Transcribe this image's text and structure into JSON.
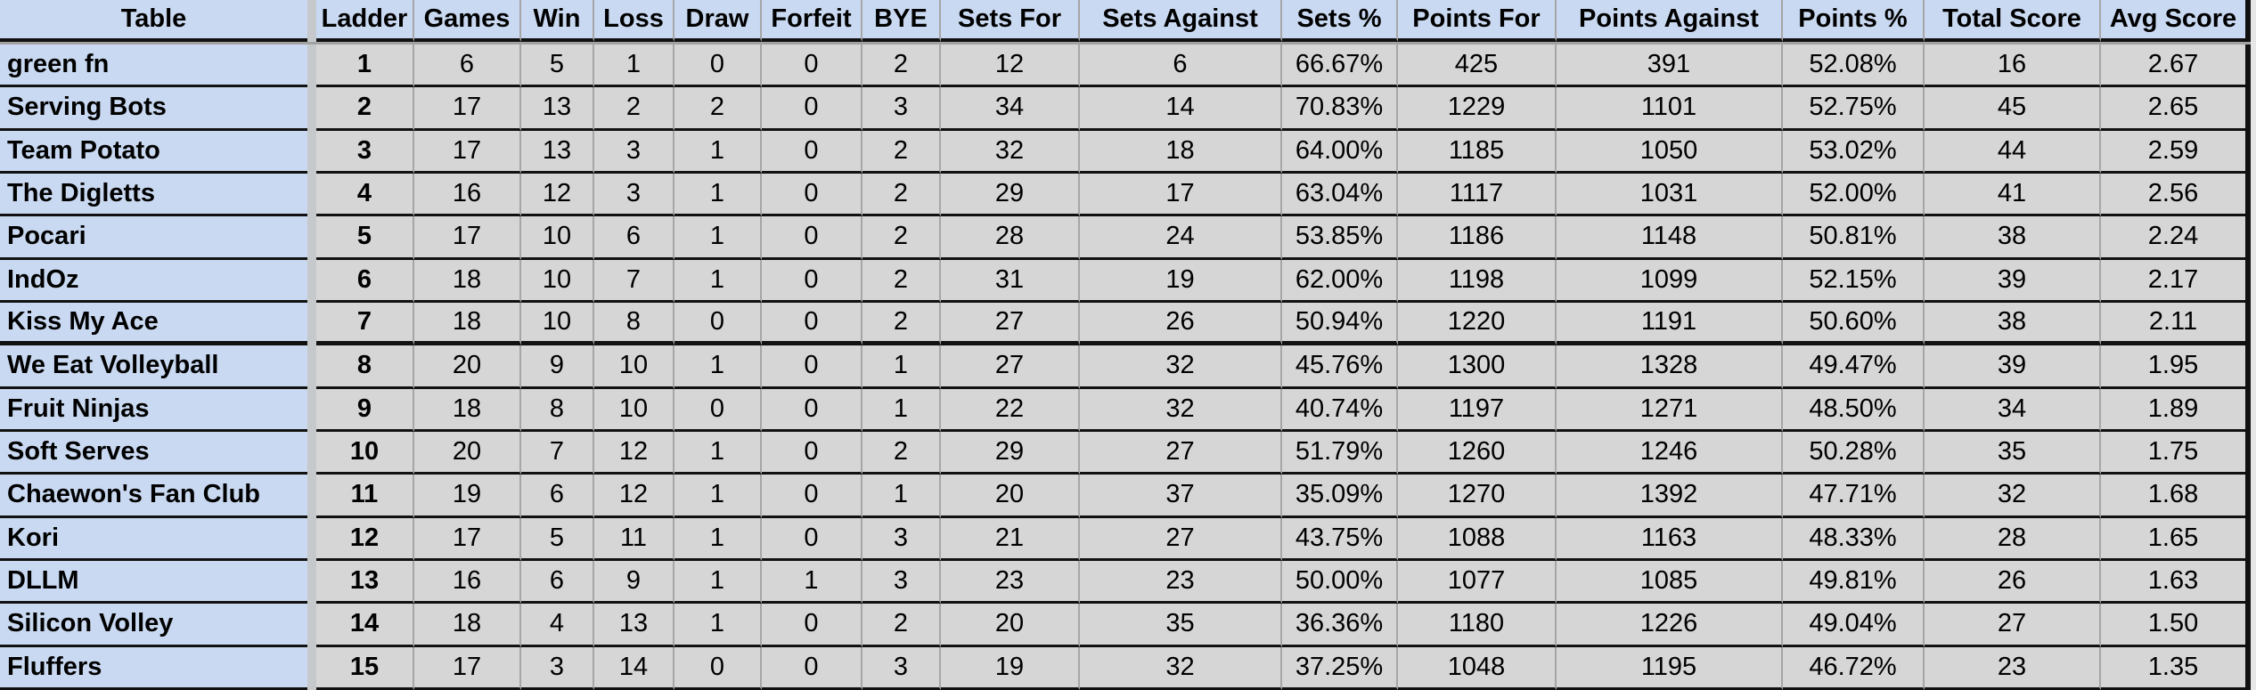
{
  "table": {
    "columns": [
      "Table",
      "Ladder",
      "Games",
      "Win",
      "Loss",
      "Draw",
      "Forfeit",
      "BYE",
      "Sets For",
      "Sets Against",
      "Sets %",
      "Points For",
      "Points Against",
      "Points %",
      "Total Score",
      "Avg Score"
    ],
    "rows": [
      {
        "team": "green fn",
        "values": [
          "1",
          "6",
          "5",
          "1",
          "0",
          "0",
          "2",
          "12",
          "6",
          "66.67%",
          "425",
          "391",
          "52.08%",
          "16",
          "2.67"
        ]
      },
      {
        "team": "Serving Bots",
        "values": [
          "2",
          "17",
          "13",
          "2",
          "2",
          "0",
          "3",
          "34",
          "14",
          "70.83%",
          "1229",
          "1101",
          "52.75%",
          "45",
          "2.65"
        ]
      },
      {
        "team": "Team Potato",
        "values": [
          "3",
          "17",
          "13",
          "3",
          "1",
          "0",
          "2",
          "32",
          "18",
          "64.00%",
          "1185",
          "1050",
          "53.02%",
          "44",
          "2.59"
        ]
      },
      {
        "team": "The Digletts",
        "values": [
          "4",
          "16",
          "12",
          "3",
          "1",
          "0",
          "2",
          "29",
          "17",
          "63.04%",
          "1117",
          "1031",
          "52.00%",
          "41",
          "2.56"
        ]
      },
      {
        "team": "Pocari",
        "values": [
          "5",
          "17",
          "10",
          "6",
          "1",
          "0",
          "2",
          "28",
          "24",
          "53.85%",
          "1186",
          "1148",
          "50.81%",
          "38",
          "2.24"
        ]
      },
      {
        "team": "IndOz",
        "values": [
          "6",
          "18",
          "10",
          "7",
          "1",
          "0",
          "2",
          "31",
          "19",
          "62.00%",
          "1198",
          "1099",
          "52.15%",
          "39",
          "2.17"
        ]
      },
      {
        "team": "Kiss My Ace",
        "values": [
          "7",
          "18",
          "10",
          "8",
          "0",
          "0",
          "2",
          "27",
          "26",
          "50.94%",
          "1220",
          "1191",
          "50.60%",
          "38",
          "2.11"
        ]
      },
      {
        "team": "We Eat Volleyball",
        "values": [
          "8",
          "20",
          "9",
          "10",
          "1",
          "0",
          "1",
          "27",
          "32",
          "45.76%",
          "1300",
          "1328",
          "49.47%",
          "39",
          "1.95"
        ]
      },
      {
        "team": "Fruit Ninjas",
        "values": [
          "9",
          "18",
          "8",
          "10",
          "0",
          "0",
          "1",
          "22",
          "32",
          "40.74%",
          "1197",
          "1271",
          "48.50%",
          "34",
          "1.89"
        ]
      },
      {
        "team": "Soft Serves",
        "values": [
          "10",
          "20",
          "7",
          "12",
          "1",
          "0",
          "2",
          "29",
          "27",
          "51.79%",
          "1260",
          "1246",
          "50.28%",
          "35",
          "1.75"
        ]
      },
      {
        "team": "Chaewon's Fan Club",
        "values": [
          "11",
          "19",
          "6",
          "12",
          "1",
          "0",
          "1",
          "20",
          "37",
          "35.09%",
          "1270",
          "1392",
          "47.71%",
          "32",
          "1.68"
        ]
      },
      {
        "team": "Kori",
        "values": [
          "12",
          "17",
          "5",
          "11",
          "1",
          "0",
          "3",
          "21",
          "27",
          "43.75%",
          "1088",
          "1163",
          "48.33%",
          "28",
          "1.65"
        ]
      },
      {
        "team": "DLLM",
        "values": [
          "13",
          "16",
          "6",
          "9",
          "1",
          "1",
          "3",
          "23",
          "23",
          "50.00%",
          "1077",
          "1085",
          "49.81%",
          "26",
          "1.63"
        ]
      },
      {
        "team": "Silicon Volley",
        "values": [
          "14",
          "18",
          "4",
          "13",
          "1",
          "0",
          "2",
          "20",
          "35",
          "36.36%",
          "1180",
          "1226",
          "49.04%",
          "27",
          "1.50"
        ]
      },
      {
        "team": "Fluffers",
        "values": [
          "15",
          "17",
          "3",
          "14",
          "0",
          "0",
          "3",
          "19",
          "32",
          "37.25%",
          "1048",
          "1195",
          "46.72%",
          "23",
          "1.35"
        ]
      }
    ]
  },
  "colors": {
    "header_bg": "#c9d9f1",
    "cell_bg": "#d6d6d6",
    "gutter_bg": "#c6c9cb",
    "gridline": "#a6a6a6",
    "row_border": "#111111",
    "freeze_shadow": "#a2a2a2"
  }
}
